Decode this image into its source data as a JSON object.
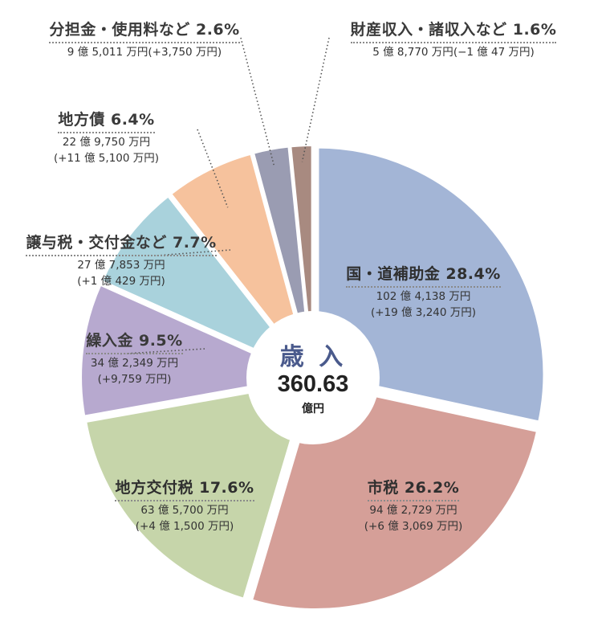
{
  "center": {
    "title": "歳 入",
    "total": "360.63",
    "unit": "億円"
  },
  "chart_data": {
    "type": "pie",
    "title": "",
    "total_label": "360.63 億円",
    "slices": [
      {
        "name": "国・道補助金",
        "percent": 28.4,
        "amount": "102 億 4,138 万円",
        "change": "(+19 億 3,240 万円)",
        "color": "#a3b5d6"
      },
      {
        "name": "市税",
        "percent": 26.2,
        "amount": "94 億 2,729 万円",
        "change": "(+6 億 3,069 万円)",
        "color": "#d59f98"
      },
      {
        "name": "地方交付税",
        "percent": 17.6,
        "amount": "63 億 5,700 万円",
        "change": "(+4 億 1,500 万円)",
        "color": "#c6d5aa"
      },
      {
        "name": "繰入金",
        "percent": 9.5,
        "amount": "34 億 2,349 万円",
        "change": "(+9,759 万円)",
        "color": "#b7a9cf"
      },
      {
        "name": "譲与税・交付金など",
        "percent": 7.7,
        "amount": "27 億 7,853 万円",
        "change": "(+1 億 429 万円)",
        "color": "#a9d2dc"
      },
      {
        "name": "地方債",
        "percent": 6.4,
        "amount": "22 億 9,750 万円",
        "change": "(+11 億 5,100 万円)",
        "color": "#f6c29d"
      },
      {
        "name": "分担金・使用料など",
        "percent": 2.6,
        "amount": "9 億 5,011 万円",
        "change": "(+3,750 万円)",
        "color": "#9a9cb2"
      },
      {
        "name": "財産収入・諸収入など",
        "percent": 1.6,
        "amount": "5 億 8,770 万円",
        "change": "(−1 億 47 万円)",
        "color": "#a88a80"
      }
    ]
  }
}
